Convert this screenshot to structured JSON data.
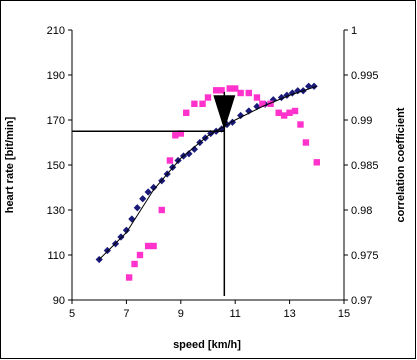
{
  "chart_data": {
    "type": "scatter",
    "title": "",
    "xlabel": "speed [km/h]",
    "ylabel": "heart rate [bit/min]",
    "y2label": "correlation coefficient",
    "xlim": [
      5,
      15
    ],
    "ylim": [
      90,
      210
    ],
    "y2lim": [
      0.97,
      1
    ],
    "x_ticks": [
      "5",
      "7",
      "9",
      "11",
      "13",
      "15"
    ],
    "x_tick_values": [
      5,
      7,
      9,
      11,
      13,
      15
    ],
    "y_ticks": [
      "90",
      "110",
      "130",
      "150",
      "170",
      "190",
      "210"
    ],
    "y_tick_values": [
      90,
      110,
      130,
      150,
      170,
      190,
      210
    ],
    "y2_ticks": [
      "0.97",
      "0.975",
      "0.98",
      "0.985",
      "0.99",
      "0.995",
      "1"
    ],
    "y2_tick_values": [
      0.97,
      0.975,
      0.98,
      0.985,
      0.99,
      0.995,
      1
    ],
    "grid": false,
    "legend": "none",
    "series": [
      {
        "axis": "left",
        "marker": "diamond",
        "color": "#1a1a7a",
        "x": [
          6.0,
          6.3,
          6.6,
          6.8,
          7.0,
          7.2,
          7.4,
          7.6,
          7.8,
          8.0,
          8.3,
          8.5,
          8.7,
          8.9,
          9.1,
          9.3,
          9.5,
          9.7,
          9.9,
          10.1,
          10.3,
          10.5,
          10.7,
          10.9,
          11.2,
          11.5,
          11.8,
          12.1,
          12.4,
          12.7,
          12.9,
          13.1,
          13.3,
          13.5,
          13.7,
          13.9
        ],
        "y": [
          108,
          112,
          115,
          118,
          121,
          126,
          131,
          135,
          138,
          140,
          143,
          146,
          149,
          152,
          154,
          155,
          157,
          160,
          162,
          164,
          165,
          166,
          168,
          169,
          172,
          174,
          176,
          177,
          179,
          180,
          181,
          182,
          183,
          183,
          185,
          185
        ]
      },
      {
        "axis": "right",
        "marker": "square",
        "color": "#ff33cc",
        "x": [
          7.1,
          7.3,
          7.5,
          7.8,
          8.0,
          8.3,
          8.6,
          8.8,
          9.0,
          9.2,
          9.5,
          9.8,
          10.0,
          10.3,
          10.5,
          10.8,
          11.0,
          11.2,
          11.5,
          11.8,
          12.0,
          12.3,
          12.6,
          12.8,
          13.0,
          13.2,
          13.4,
          13.6,
          14.0
        ],
        "y": [
          0.9725,
          0.974,
          0.975,
          0.976,
          0.976,
          0.98,
          0.9855,
          0.9883,
          0.9885,
          0.9908,
          0.9918,
          0.9918,
          0.9925,
          0.9933,
          0.9933,
          0.9935,
          0.9935,
          0.993,
          0.993,
          0.9925,
          0.9918,
          0.9918,
          0.9908,
          0.9905,
          0.9908,
          0.991,
          0.9895,
          0.9875,
          0.9853
        ]
      },
      {
        "axis": "left",
        "type": "line",
        "color": "#000000",
        "x": [
          6.0,
          7.0,
          8.0,
          9.0,
          10.0,
          11.0,
          12.0,
          13.0,
          14.0
        ],
        "y": [
          108,
          120,
          139,
          153,
          163,
          170,
          176,
          181,
          185
        ]
      }
    ],
    "annotations": {
      "threshold_speed": 10.6,
      "threshold_heart_rate": 165
    }
  }
}
